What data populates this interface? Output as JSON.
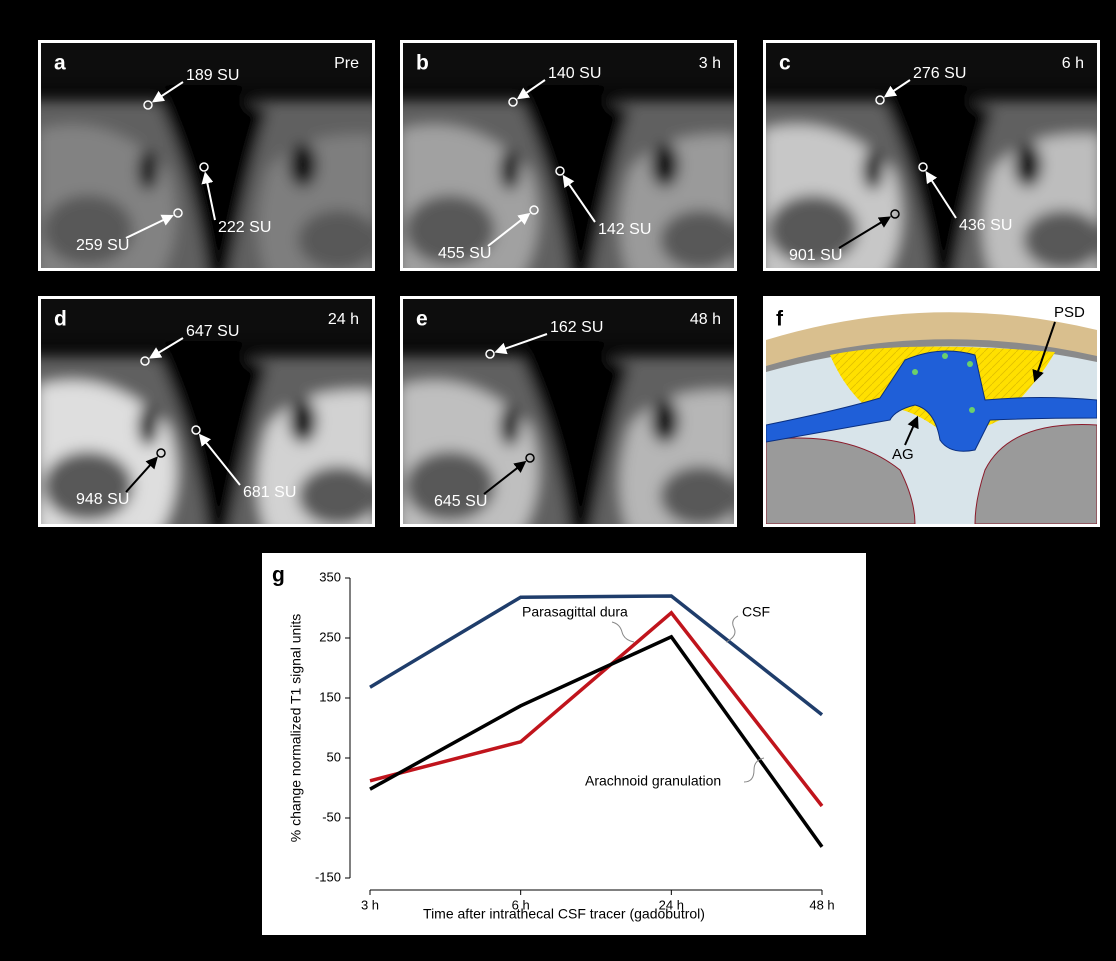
{
  "panels": [
    {
      "letter": "a",
      "time": "Pre",
      "labels": [
        "189 SU",
        "222 SU",
        "259 SU"
      ]
    },
    {
      "letter": "b",
      "time": "3 h",
      "labels": [
        "140 SU",
        "142 SU",
        "455 SU"
      ]
    },
    {
      "letter": "c",
      "time": "6 h",
      "labels": [
        "276 SU",
        "436 SU",
        "901 SU"
      ]
    },
    {
      "letter": "d",
      "time": "24 h",
      "labels": [
        "647 SU",
        "681 SU",
        "948 SU"
      ]
    },
    {
      "letter": "e",
      "time": "48 h",
      "labels": [
        "162 SU",
        "645 SU"
      ]
    }
  ],
  "schematic": {
    "letter": "f",
    "labels": [
      "PSD",
      "AG"
    ]
  },
  "chart_data": {
    "type": "line",
    "panel_letter": "g",
    "y_label": "% change normalized T1 signal units",
    "x_label": "Time after intrathecal CSF tracer (gadobutrol)",
    "categories": [
      "3 h",
      "6 h",
      "24 h",
      "48 h"
    ],
    "series": [
      {
        "name": "CSF",
        "color": "#1f3d6b",
        "values": [
          168,
          318,
          320,
          122
        ]
      },
      {
        "name": "Parasagittal dura",
        "color": "#c0141c",
        "values": [
          12,
          77,
          292,
          -30
        ]
      },
      {
        "name": "Arachnoid granulation",
        "color": "#000000",
        "values": [
          -2,
          137,
          252,
          -98
        ]
      }
    ],
    "ylim": [
      -150,
      350
    ],
    "yticks": [
      -150,
      -50,
      50,
      150,
      250,
      350
    ]
  }
}
